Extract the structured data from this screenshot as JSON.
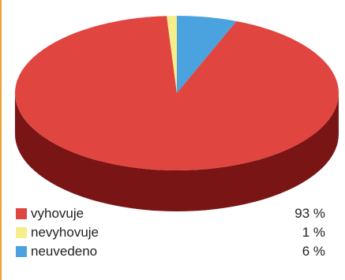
{
  "chart_data": {
    "type": "pie",
    "slices": [
      {
        "label": "vyhovuje",
        "value": 93,
        "display": "93 %",
        "color": "#e04540",
        "side_color": "#7a1515"
      },
      {
        "label": "nevyhovuje",
        "value": 1,
        "display": "1 %",
        "color": "#f5ee8a",
        "side_color": "#8a8640"
      },
      {
        "label": "neuvedeno",
        "value": 6,
        "display": "6 %",
        "color": "#4aa3df",
        "side_color": "#1e5a85"
      }
    ]
  },
  "colors": {
    "accent_border": "#f0a030"
  }
}
